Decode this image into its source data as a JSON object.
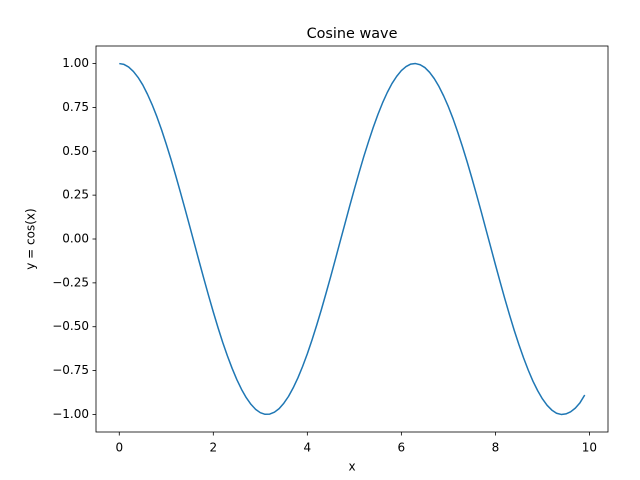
{
  "chart_data": {
    "type": "line",
    "title": "Cosine wave",
    "x_label": "x",
    "y_label": "y = cos(x)",
    "color": "#1f77b4",
    "x": [
      0,
      0.1,
      0.2,
      0.3,
      0.4,
      0.5,
      0.6,
      0.7,
      0.8,
      0.9,
      1,
      1.1,
      1.2,
      1.3,
      1.4,
      1.5,
      1.6,
      1.7,
      1.8,
      1.9,
      2,
      2.1,
      2.2,
      2.3,
      2.4,
      2.5,
      2.6,
      2.7,
      2.8,
      2.9,
      3,
      3.1,
      3.2,
      3.3,
      3.4,
      3.5,
      3.6,
      3.7,
      3.8,
      3.9,
      4,
      4.1,
      4.2,
      4.3,
      4.4,
      4.5,
      4.6,
      4.7,
      4.8,
      4.9,
      5,
      5.1,
      5.2,
      5.3,
      5.4,
      5.5,
      5.6,
      5.7,
      5.8,
      5.9,
      6,
      6.1,
      6.2,
      6.3,
      6.4,
      6.5,
      6.6,
      6.7,
      6.8,
      6.9,
      7,
      7.1,
      7.2,
      7.3,
      7.4,
      7.5,
      7.6,
      7.7,
      7.8,
      7.9,
      8,
      8.1,
      8.2,
      8.3,
      8.4,
      8.5,
      8.6,
      8.7,
      8.8,
      8.9,
      9,
      9.1,
      9.2,
      9.3,
      9.4,
      9.5,
      9.6,
      9.7,
      9.8,
      9.9
    ],
    "values": [
      1.0,
      0.995,
      0.98,
      0.955,
      0.921,
      0.878,
      0.825,
      0.765,
      0.697,
      0.622,
      0.54,
      0.454,
      0.362,
      0.267,
      0.17,
      0.071,
      -0.029,
      -0.129,
      -0.227,
      -0.323,
      -0.416,
      -0.505,
      -0.589,
      -0.666,
      -0.737,
      -0.801,
      -0.857,
      -0.904,
      -0.942,
      -0.971,
      -0.99,
      -0.999,
      -0.998,
      -0.987,
      -0.967,
      -0.936,
      -0.897,
      -0.848,
      -0.791,
      -0.726,
      -0.654,
      -0.575,
      -0.49,
      -0.401,
      -0.307,
      -0.211,
      -0.112,
      -0.012,
      0.087,
      0.187,
      0.284,
      0.378,
      0.469,
      0.554,
      0.635,
      0.709,
      0.776,
      0.835,
      0.886,
      0.927,
      0.96,
      0.983,
      0.997,
      1.0,
      0.993,
      0.977,
      0.95,
      0.914,
      0.869,
      0.815,
      0.754,
      0.685,
      0.608,
      0.526,
      0.439,
      0.347,
      0.252,
      0.154,
      0.054,
      -0.046,
      -0.146,
      -0.244,
      -0.34,
      -0.432,
      -0.52,
      -0.602,
      -0.678,
      -0.748,
      -0.811,
      -0.865,
      -0.911,
      -0.948,
      -0.975,
      -0.993,
      -1.0,
      -0.997,
      -0.985,
      -0.964,
      -0.933,
      -0.889
    ],
    "xlim": [
      -0.495,
      10.395
    ],
    "ylim": [
      -1.1,
      1.1
    ],
    "xticks": [
      0,
      2,
      4,
      6,
      8,
      10
    ],
    "yticks": [
      {
        "value": -1,
        "label": "−1.00"
      },
      {
        "value": -0.75,
        "label": "−0.75"
      },
      {
        "value": -0.5,
        "label": "−0.50"
      },
      {
        "value": -0.25,
        "label": "−0.25"
      },
      {
        "value": 0,
        "label": "0.00"
      },
      {
        "value": 0.25,
        "label": "0.25"
      },
      {
        "value": 0.5,
        "label": "0.50"
      },
      {
        "value": 0.75,
        "label": "0.75"
      },
      {
        "value": 1,
        "label": "1.00"
      }
    ]
  }
}
